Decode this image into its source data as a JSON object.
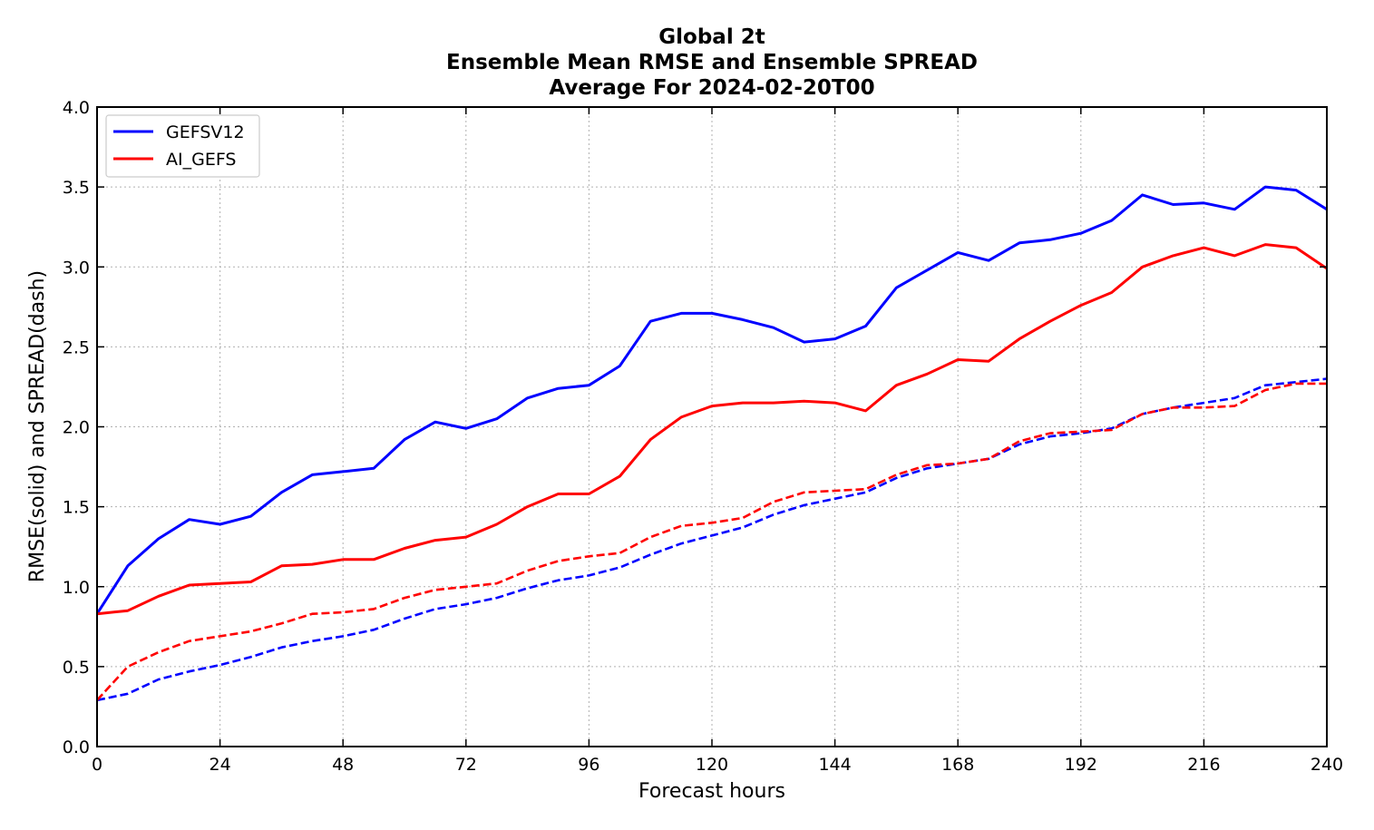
{
  "chart_data": {
    "type": "line",
    "title_lines": [
      "Global 2t",
      "Ensemble Mean RMSE and Ensemble SPREAD",
      "Average For 2024-02-20T00"
    ],
    "xlabel": "Forecast hours",
    "ylabel": "RMSE(solid) and SPREAD(dash)",
    "xlim": [
      0,
      240
    ],
    "ylim": [
      0.0,
      4.0
    ],
    "xticks": [
      0,
      24,
      48,
      72,
      96,
      120,
      144,
      168,
      192,
      216,
      240
    ],
    "xtick_labels": [
      "0",
      "24",
      "48",
      "72",
      "96",
      "120",
      "144",
      "168",
      "192",
      "216",
      "240"
    ],
    "yticks": [
      0.0,
      0.5,
      1.0,
      1.5,
      2.0,
      2.5,
      3.0,
      3.5,
      4.0
    ],
    "ytick_labels": [
      "0.0",
      "0.5",
      "1.0",
      "1.5",
      "2.0",
      "2.5",
      "3.0",
      "3.5",
      "4.0"
    ],
    "grid": true,
    "legend_position": "top-left",
    "x": [
      0,
      6,
      12,
      18,
      24,
      30,
      36,
      42,
      48,
      54,
      60,
      66,
      72,
      78,
      84,
      90,
      96,
      102,
      108,
      114,
      120,
      126,
      132,
      138,
      144,
      150,
      156,
      162,
      168,
      174,
      180,
      186,
      192,
      198,
      204,
      210,
      216,
      222,
      228,
      234,
      240
    ],
    "series": [
      {
        "name": "GEFSV12",
        "color": "#0000ff",
        "rmse": [
          0.83,
          1.13,
          1.3,
          1.42,
          1.39,
          1.44,
          1.59,
          1.7,
          1.72,
          1.74,
          1.92,
          2.03,
          1.99,
          2.05,
          2.18,
          2.24,
          2.26,
          2.38,
          2.66,
          2.71,
          2.71,
          2.67,
          2.62,
          2.53,
          2.55,
          2.63,
          2.87,
          2.98,
          3.09,
          3.04,
          3.15,
          3.17,
          3.21,
          3.29,
          3.45,
          3.39,
          3.4,
          3.36,
          3.5,
          3.48,
          3.36
        ],
        "spread": [
          0.29,
          0.33,
          0.42,
          0.47,
          0.51,
          0.56,
          0.62,
          0.66,
          0.69,
          0.73,
          0.8,
          0.86,
          0.89,
          0.93,
          0.99,
          1.04,
          1.07,
          1.12,
          1.2,
          1.27,
          1.32,
          1.37,
          1.45,
          1.51,
          1.55,
          1.59,
          1.68,
          1.74,
          1.77,
          1.8,
          1.89,
          1.94,
          1.96,
          1.99,
          2.08,
          2.12,
          2.15,
          2.18,
          2.26,
          2.28,
          2.3
        ]
      },
      {
        "name": "AI_GEFS",
        "color": "#ff0000",
        "rmse": [
          0.83,
          0.85,
          0.94,
          1.01,
          1.02,
          1.03,
          1.13,
          1.14,
          1.17,
          1.17,
          1.24,
          1.29,
          1.31,
          1.39,
          1.5,
          1.58,
          1.58,
          1.69,
          1.92,
          2.06,
          2.13,
          2.15,
          2.15,
          2.16,
          2.15,
          2.1,
          2.26,
          2.33,
          2.42,
          2.41,
          2.55,
          2.66,
          2.76,
          2.84,
          3.0,
          3.07,
          3.12,
          3.07,
          3.14,
          3.12,
          2.99
        ],
        "spread": [
          0.29,
          0.5,
          0.59,
          0.66,
          0.69,
          0.72,
          0.77,
          0.83,
          0.84,
          0.86,
          0.93,
          0.98,
          1.0,
          1.02,
          1.1,
          1.16,
          1.19,
          1.21,
          1.31,
          1.38,
          1.4,
          1.43,
          1.53,
          1.59,
          1.6,
          1.61,
          1.7,
          1.76,
          1.77,
          1.8,
          1.91,
          1.96,
          1.97,
          1.98,
          2.08,
          2.12,
          2.12,
          2.13,
          2.23,
          2.27,
          2.27
        ]
      }
    ]
  }
}
